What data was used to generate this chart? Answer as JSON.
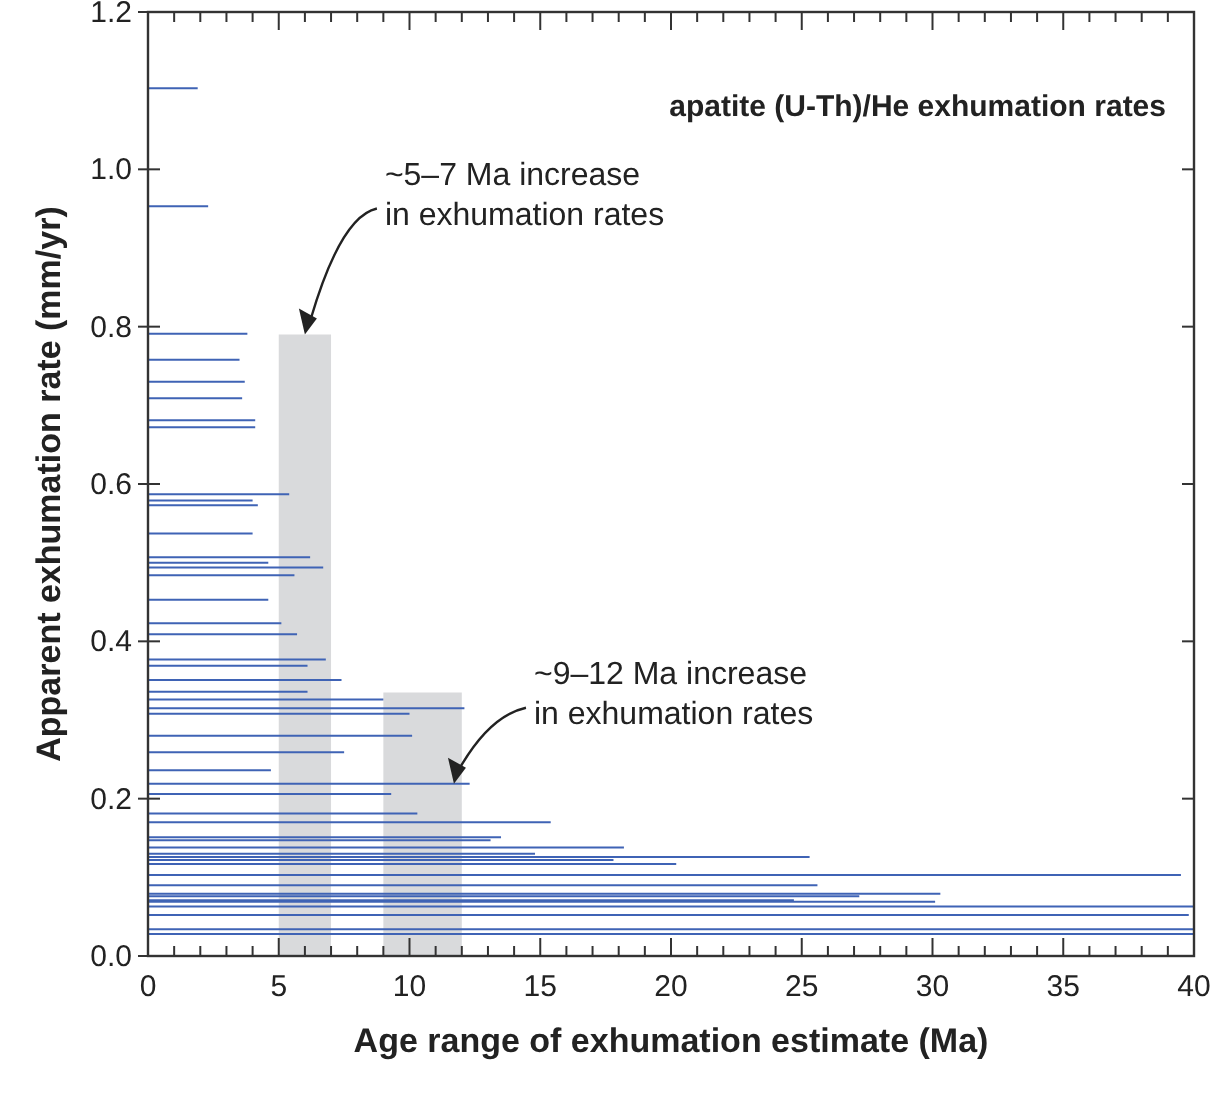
{
  "chart_data": {
    "type": "line",
    "title": "apatite (U-Th)/He exhumation rates",
    "xlabel": "Age range of exhumation estimate (Ma)",
    "ylabel": "Apparent exhumation rate (mm/yr)",
    "xlim": [
      0,
      40
    ],
    "ylim": [
      0,
      1.2
    ],
    "xticks": [
      0,
      {
        "value": 1,
        "label": null
      },
      {
        "value": 2,
        "label": null
      },
      {
        "value": 3,
        "label": null
      },
      {
        "value": 4,
        "label": null
      },
      5,
      {
        "value": 6,
        "label": null
      },
      {
        "value": 7,
        "label": null
      },
      {
        "value": 8,
        "label": null
      },
      {
        "value": 9,
        "label": null
      },
      10,
      {
        "value": 11,
        "label": null
      },
      {
        "value": 12,
        "label": null
      },
      {
        "value": 13,
        "label": null
      },
      {
        "value": 14,
        "label": null
      },
      15,
      {
        "value": 16,
        "label": null
      },
      {
        "value": 17,
        "label": null
      },
      {
        "value": 18,
        "label": null
      },
      {
        "value": 19,
        "label": null
      },
      20,
      {
        "value": 21,
        "label": null
      },
      {
        "value": 22,
        "label": null
      },
      {
        "value": 23,
        "label": null
      },
      {
        "value": 24,
        "label": null
      },
      25,
      {
        "value": 26,
        "label": null
      },
      {
        "value": 27,
        "label": null
      },
      {
        "value": 28,
        "label": null
      },
      {
        "value": 29,
        "label": null
      },
      30,
      {
        "value": 31,
        "label": null
      },
      {
        "value": 32,
        "label": null
      },
      {
        "value": 33,
        "label": null
      },
      {
        "value": 34,
        "label": null
      },
      35,
      {
        "value": 36,
        "label": null
      },
      {
        "value": 37,
        "label": null
      },
      {
        "value": 38,
        "label": null
      },
      {
        "value": 39,
        "label": null
      },
      40
    ],
    "yticks": [
      {
        "value": 0,
        "label": "0.0"
      },
      0.2,
      0.4,
      0.6,
      0.8,
      {
        "value": 1,
        "label": "1.0"
      },
      1.2
    ],
    "grid": false,
    "marker": "none",
    "line_style": "solid",
    "annotations": [
      {
        "text": "~5–7 Ma increase\nin exhumation rates",
        "x": 6,
        "y": 0.79
      },
      {
        "text": "~9–12 Ma increase\nin exhumation rates",
        "x": 11.7,
        "y": 0.219
      }
    ],
    "series": [
      {
        "type": "area",
        "color": "#d9dadc",
        "x": [
          5,
          7
        ],
        "values": [
          0.79,
          0.79
        ]
      },
      {
        "type": "area",
        "color": "#d9dadc",
        "x": [
          9,
          12
        ],
        "values": [
          0.335,
          0.335
        ]
      },
      {
        "color": "#3f63b5",
        "x": [
          0,
          1.9
        ],
        "values": [
          1.103,
          1.103
        ]
      },
      {
        "color": "#3f63b5",
        "x": [
          0,
          2.3
        ],
        "values": [
          0.953,
          0.953
        ]
      },
      {
        "color": "#3f63b5",
        "x": [
          0,
          3.8
        ],
        "values": [
          0.791,
          0.791
        ]
      },
      {
        "color": "#3f63b5",
        "x": [
          0,
          3.5
        ],
        "values": [
          0.758,
          0.758
        ]
      },
      {
        "color": "#3f63b5",
        "x": [
          0,
          3.7
        ],
        "values": [
          0.73,
          0.73
        ]
      },
      {
        "color": "#3f63b5",
        "x": [
          0,
          3.6
        ],
        "values": [
          0.709,
          0.709
        ]
      },
      {
        "color": "#3f63b5",
        "x": [
          0,
          4.1
        ],
        "values": [
          0.681,
          0.681
        ]
      },
      {
        "color": "#3f63b5",
        "x": [
          0,
          4.1
        ],
        "values": [
          0.672,
          0.672
        ]
      },
      {
        "color": "#3f63b5",
        "x": [
          0,
          5.4
        ],
        "values": [
          0.587,
          0.587
        ]
      },
      {
        "color": "#3f63b5",
        "x": [
          0,
          4.0
        ],
        "values": [
          0.579,
          0.579
        ]
      },
      {
        "color": "#3f63b5",
        "x": [
          0,
          4.2
        ],
        "values": [
          0.573,
          0.573
        ]
      },
      {
        "color": "#3f63b5",
        "x": [
          0,
          4.0
        ],
        "values": [
          0.537,
          0.537
        ]
      },
      {
        "color": "#3f63b5",
        "x": [
          0,
          6.2
        ],
        "values": [
          0.507,
          0.507
        ]
      },
      {
        "color": "#3f63b5",
        "x": [
          0,
          4.6
        ],
        "values": [
          0.5,
          0.5
        ]
      },
      {
        "color": "#3f63b5",
        "x": [
          0,
          6.7
        ],
        "values": [
          0.494,
          0.494
        ]
      },
      {
        "color": "#3f63b5",
        "x": [
          0,
          5.6
        ],
        "values": [
          0.484,
          0.484
        ]
      },
      {
        "color": "#3f63b5",
        "x": [
          0,
          4.6
        ],
        "values": [
          0.453,
          0.453
        ]
      },
      {
        "color": "#3f63b5",
        "x": [
          0,
          5.1
        ],
        "values": [
          0.423,
          0.423
        ]
      },
      {
        "color": "#3f63b5",
        "x": [
          0,
          5.7
        ],
        "values": [
          0.409,
          0.409
        ]
      },
      {
        "color": "#3f63b5",
        "x": [
          0,
          6.8
        ],
        "values": [
          0.377,
          0.377
        ]
      },
      {
        "color": "#3f63b5",
        "x": [
          0,
          6.1
        ],
        "values": [
          0.369,
          0.369
        ]
      },
      {
        "color": "#3f63b5",
        "x": [
          0,
          7.4
        ],
        "values": [
          0.351,
          0.351
        ]
      },
      {
        "color": "#3f63b5",
        "x": [
          0,
          6.1
        ],
        "values": [
          0.336,
          0.336
        ]
      },
      {
        "color": "#3f63b5",
        "x": [
          0,
          9.0
        ],
        "values": [
          0.326,
          0.326
        ]
      },
      {
        "color": "#3f63b5",
        "x": [
          0,
          12.1
        ],
        "values": [
          0.315,
          0.315
        ]
      },
      {
        "color": "#3f63b5",
        "x": [
          0,
          10.0
        ],
        "values": [
          0.308,
          0.308
        ]
      },
      {
        "color": "#3f63b5",
        "x": [
          0,
          10.1
        ],
        "values": [
          0.28,
          0.28
        ]
      },
      {
        "color": "#3f63b5",
        "x": [
          0,
          7.5
        ],
        "values": [
          0.259,
          0.259
        ]
      },
      {
        "color": "#3f63b5",
        "x": [
          0,
          4.7
        ],
        "values": [
          0.236,
          0.236
        ]
      },
      {
        "color": "#3f63b5",
        "x": [
          0,
          12.3
        ],
        "values": [
          0.219,
          0.219
        ]
      },
      {
        "color": "#3f63b5",
        "x": [
          0,
          9.3
        ],
        "values": [
          0.206,
          0.206
        ]
      },
      {
        "color": "#3f63b5",
        "x": [
          0,
          10.3
        ],
        "values": [
          0.181,
          0.181
        ]
      },
      {
        "color": "#3f63b5",
        "x": [
          0,
          15.4
        ],
        "values": [
          0.17,
          0.17
        ]
      },
      {
        "color": "#3f63b5",
        "x": [
          0,
          13.5
        ],
        "values": [
          0.151,
          0.151
        ]
      },
      {
        "color": "#3f63b5",
        "x": [
          0,
          13.1
        ],
        "values": [
          0.147,
          0.147
        ]
      },
      {
        "color": "#3f63b5",
        "x": [
          0,
          18.2
        ],
        "values": [
          0.138,
          0.138
        ]
      },
      {
        "color": "#3f63b5",
        "x": [
          0,
          14.8
        ],
        "values": [
          0.13,
          0.13
        ]
      },
      {
        "color": "#3f63b5",
        "x": [
          0,
          25.3
        ],
        "values": [
          0.126,
          0.126
        ]
      },
      {
        "color": "#3f63b5",
        "x": [
          0,
          17.8
        ],
        "values": [
          0.122,
          0.122
        ]
      },
      {
        "color": "#3f63b5",
        "x": [
          0,
          20.2
        ],
        "values": [
          0.117,
          0.117
        ]
      },
      {
        "color": "#3f63b5",
        "x": [
          0,
          39.5
        ],
        "values": [
          0.103,
          0.103
        ]
      },
      {
        "color": "#3f63b5",
        "x": [
          0,
          25.6
        ],
        "values": [
          0.09,
          0.09
        ]
      },
      {
        "color": "#3f63b5",
        "x": [
          0,
          30.3
        ],
        "values": [
          0.079,
          0.079
        ]
      },
      {
        "color": "#3f63b5",
        "x": [
          0,
          27.2
        ],
        "values": [
          0.076,
          0.076
        ]
      },
      {
        "color": "#3f63b5",
        "x": [
          0,
          24.7
        ],
        "values": [
          0.071,
          0.071
        ]
      },
      {
        "color": "#3f63b5",
        "x": [
          0,
          30.1
        ],
        "values": [
          0.069,
          0.069
        ]
      },
      {
        "color": "#3f63b5",
        "x": [
          0,
          40
        ],
        "values": [
          0.063,
          0.063
        ]
      },
      {
        "color": "#3f63b5",
        "x": [
          0,
          39.8
        ],
        "values": [
          0.052,
          0.052
        ]
      },
      {
        "color": "#3f63b5",
        "x": [
          0,
          40
        ],
        "values": [
          0.034,
          0.034
        ]
      },
      {
        "color": "#3f63b5",
        "x": [
          0,
          40
        ],
        "values": [
          0.028,
          0.028
        ]
      }
    ]
  }
}
